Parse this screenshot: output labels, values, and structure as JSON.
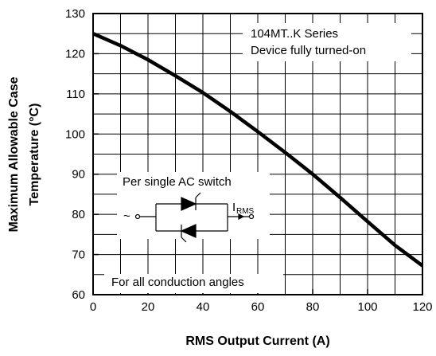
{
  "chart_data": {
    "type": "line",
    "xlabel": "RMS Output Current (A)",
    "ylabel_lines": [
      "Maximum Allowable Case",
      "Temperature (°C)"
    ],
    "xlim": [
      0,
      120
    ],
    "ylim": [
      60,
      130
    ],
    "x_ticks": [
      "0",
      "20",
      "40",
      "60",
      "80",
      "100",
      "120"
    ],
    "y_ticks": [
      "60",
      "70",
      "80",
      "90",
      "100",
      "110",
      "120",
      "130"
    ],
    "grid": true,
    "series": [
      {
        "x": [
          0,
          10,
          20,
          30,
          40,
          50,
          60,
          70,
          80,
          90,
          100,
          110,
          120
        ],
        "y": [
          125,
          122,
          118.5,
          114.5,
          110.3,
          105.6,
          100.6,
          95.4,
          90,
          84.2,
          78.2,
          72.3,
          67.2
        ]
      }
    ],
    "annotations": {
      "series_title": "104MT..K Series",
      "condition": "Device fully turned-on",
      "switch_label": "Per single AC switch",
      "current_symbol": "I",
      "current_subscript": "RMS",
      "source_symbol": "~",
      "angles_label": "For all conduction angles"
    }
  }
}
